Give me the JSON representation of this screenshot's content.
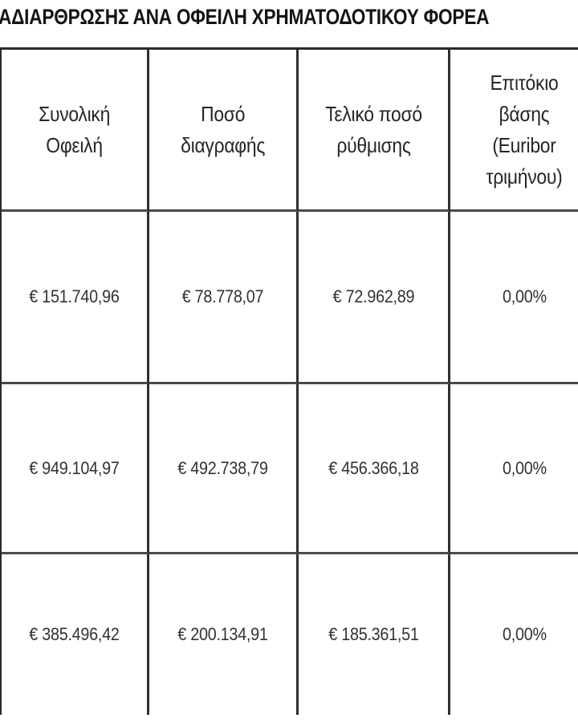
{
  "title": "ΑΔΙΑΡΘΡΩΣΗΣ ΑΝΑ ΟΦΕΙΛΗ ΧΡΗΜΑΤΟΔΟΤΙΚΟΥ ΦΟΡΕΑ",
  "table": {
    "headers": [
      "Συνολική\nΟφειλή",
      "Ποσό\nδιαγραφής",
      "Τελικό ποσό\nρύθμισης",
      "Επιτόκιο\nβάσης\n(Euribor\nτριμήνου)"
    ],
    "rows": [
      [
        "€ 151.740,96",
        "€ 78.778,07",
        "€ 72.962,89",
        "0,00%"
      ],
      [
        "€ 949.104,97",
        "€ 492.738,79",
        "€ 456.366,18",
        "0,00%"
      ],
      [
        "€ 385.496,42",
        "€ 200.134,91",
        "€ 185.361,51",
        "0,00%"
      ]
    ]
  }
}
